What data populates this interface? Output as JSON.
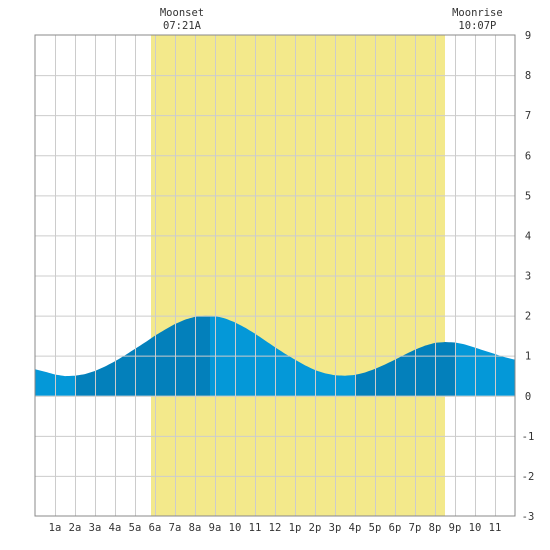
{
  "chart_data": {
    "type": "area",
    "title": "",
    "xlabel": "",
    "ylabel": "",
    "xlim": [
      0,
      24
    ],
    "ylim": [
      -3,
      9
    ],
    "y_ticks": [
      -3,
      -2,
      -1,
      0,
      1,
      2,
      3,
      4,
      5,
      6,
      7,
      8,
      9
    ],
    "x_tick_values": [
      1,
      2,
      3,
      4,
      5,
      6,
      7,
      8,
      9,
      10,
      11,
      12,
      13,
      14,
      15,
      16,
      17,
      18,
      19,
      20,
      21,
      22,
      23
    ],
    "x_tick_labels": [
      "1a",
      "2a",
      "3a",
      "4a",
      "5a",
      "6a",
      "7a",
      "8a",
      "9a",
      "10",
      "11",
      "12",
      "1p",
      "2p",
      "3p",
      "4p",
      "5p",
      "6p",
      "7p",
      "8p",
      "9p",
      "10",
      "11"
    ],
    "grid": true,
    "daylight": {
      "start": 5.8,
      "end": 20.5,
      "color": "#f3e98b"
    },
    "annotations": [
      {
        "title": "Moonset",
        "time": "07:21A",
        "x": 7.35
      },
      {
        "title": "Moonrise",
        "time": "10:07P",
        "x": 22.12
      }
    ],
    "tide_curve": {
      "x": [
        0,
        0.5,
        1,
        1.5,
        2,
        2.5,
        3,
        3.5,
        4,
        4.5,
        5,
        5.5,
        6,
        6.5,
        7,
        7.5,
        8,
        8.5,
        9,
        9.5,
        10,
        10.5,
        11,
        11.5,
        12,
        12.5,
        13,
        13.5,
        14,
        14.5,
        15,
        15.5,
        16,
        16.5,
        17,
        17.5,
        18,
        18.5,
        19,
        19.5,
        20,
        20.5,
        21,
        21.5,
        22,
        22.5,
        23,
        23.5,
        24
      ],
      "y": [
        0.66,
        0.6,
        0.53,
        0.49,
        0.5,
        0.54,
        0.62,
        0.73,
        0.86,
        1.01,
        1.17,
        1.33,
        1.5,
        1.65,
        1.79,
        1.9,
        1.97,
        2.0,
        1.99,
        1.93,
        1.83,
        1.7,
        1.55,
        1.38,
        1.21,
        1.05,
        0.9,
        0.76,
        0.64,
        0.56,
        0.51,
        0.5,
        0.52,
        0.58,
        0.67,
        0.78,
        0.9,
        1.03,
        1.15,
        1.25,
        1.32,
        1.34,
        1.33,
        1.28,
        1.2,
        1.12,
        1.04,
        0.96,
        0.9
      ]
    },
    "bands": [
      {
        "from": 0,
        "to": 2,
        "shade": "light"
      },
      {
        "from": 2,
        "to": 8.75,
        "shade": "dark"
      },
      {
        "from": 8.75,
        "to": 16,
        "shade": "light"
      },
      {
        "from": 16,
        "to": 21,
        "shade": "dark"
      },
      {
        "from": 21,
        "to": 24,
        "shade": "light"
      }
    ],
    "colors": {
      "tide_light": "#0498d8",
      "tide_dark": "#0380bb",
      "grid": "#cccccc",
      "border": "#888888",
      "text": "#333333"
    }
  }
}
